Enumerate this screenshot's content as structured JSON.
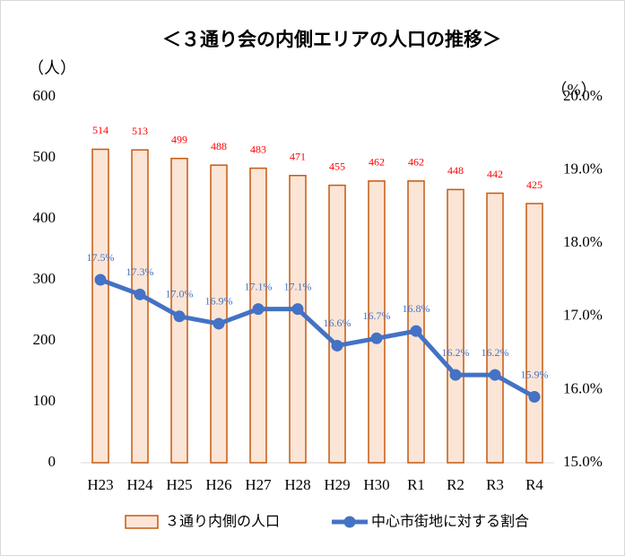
{
  "chart_data": {
    "type": "bar",
    "title": "＜３通り会の内側エリアの人口の推移＞",
    "y_label": "（人）",
    "y2_label": "（%）",
    "categories": [
      "H23",
      "H24",
      "H25",
      "H26",
      "H27",
      "H28",
      "H29",
      "H30",
      "R1",
      "R2",
      "R3",
      "R4"
    ],
    "ylim": [
      0,
      600
    ],
    "yticks": [
      0,
      100,
      200,
      300,
      400,
      500,
      600
    ],
    "y2lim": [
      15,
      20
    ],
    "y2ticks": [
      {
        "value": 15,
        "label": "15.0%"
      },
      {
        "value": 16,
        "label": "16.0%"
      },
      {
        "value": 17,
        "label": "17.0%"
      },
      {
        "value": 18,
        "label": "18.0%"
      },
      {
        "value": 19,
        "label": "19.0%"
      },
      {
        "value": 20,
        "label": "20.0%"
      }
    ],
    "series": [
      {
        "name": "３通り内側の人口",
        "type": "bar",
        "color": "#fbe5d6",
        "edge_color": "#c55a11",
        "label_color": "#ff0000",
        "values": [
          514,
          513,
          499,
          488,
          483,
          471,
          455,
          462,
          462,
          448,
          442,
          425
        ]
      },
      {
        "name": "中心市街地に対する割合",
        "type": "line",
        "axis": "y2",
        "color": "#4472c4",
        "values": [
          17.5,
          17.3,
          17.0,
          16.9,
          17.1,
          17.1,
          16.6,
          16.7,
          16.8,
          16.2,
          16.2,
          15.9
        ],
        "value_labels": [
          "17.5%",
          "17.3%",
          "17.0%",
          "16.9%",
          "17.1%",
          "17.1%",
          "16.6%",
          "16.7%",
          "16.8%",
          "16.2%",
          "16.2%",
          "15.9%"
        ]
      }
    ]
  }
}
